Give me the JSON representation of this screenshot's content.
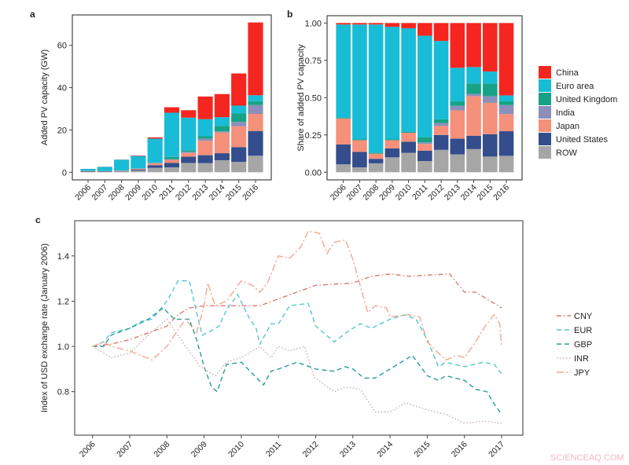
{
  "watermark": "SCIENCEAQ.COM",
  "colors": {
    "China": "#f5261f",
    "Euro area": "#19bcd6",
    "United Kingdom": "#17a287",
    "India": "#8b8fba",
    "Japan": "#f5907a",
    "United States": "#344d8c",
    "ROW": "#a6a6a6",
    "CNY": "#d77c70",
    "EUR": "#55c6d2",
    "GBP": "#25a093",
    "INR": "#c9aeb0",
    "JPY": "#f3a68f"
  },
  "chart_data": [
    {
      "panel": "a",
      "type": "bar",
      "stacked": true,
      "ylabel": "Added PV capacity (GW)",
      "ylim": [
        0,
        72
      ],
      "yticks": [
        0,
        20,
        40,
        60
      ],
      "categories": [
        "2006",
        "2007",
        "2008",
        "2009",
        "2010",
        "2011",
        "2012",
        "2013",
        "2014",
        "2015",
        "2016"
      ],
      "series": [
        {
          "name": "ROW",
          "values": [
            0.09,
            0.09,
            0.36,
            0.79,
            2.1,
            2.3,
            4.4,
            4.3,
            5.7,
            4.9,
            7.8
          ]
        },
        {
          "name": "United States",
          "values": [
            0.21,
            0.27,
            0.18,
            0.47,
            1.24,
            2.16,
            2.94,
            3.76,
            3.3,
            7.0,
            11.7
          ]
        },
        {
          "name": "Japan",
          "values": [
            0.28,
            0.2,
            0.21,
            0.43,
            0.99,
            1.39,
            1.76,
            6.8,
            9.8,
            9.8,
            8.1
          ]
        },
        {
          "name": "India",
          "values": [
            0,
            0,
            0,
            0,
            0,
            0.31,
            0.59,
            1.07,
            0.55,
            2.1,
            4.2
          ]
        },
        {
          "name": "United Kingdom",
          "values": [
            0.01,
            0.01,
            0.03,
            0.05,
            0.08,
            1.08,
            0.74,
            1.07,
            2.6,
            4.0,
            1.8
          ]
        },
        {
          "name": "Euro area",
          "values": [
            1.0,
            2.0,
            5.16,
            5.96,
            11.5,
            20.9,
            15.4,
            8.1,
            4.1,
            3.7,
            2.8
          ]
        },
        {
          "name": "China",
          "values": [
            0.02,
            0.03,
            0.06,
            0.2,
            0.58,
            2.6,
            3.5,
            10.7,
            10.9,
            15.2,
            34.4
          ]
        }
      ]
    },
    {
      "panel": "b",
      "type": "bar",
      "stacked": true,
      "ylabel": "Share of added PV capacity",
      "ylim": [
        0,
        1
      ],
      "yticks": [
        "0.00",
        "0.25",
        "0.50",
        "0.75",
        "1.00"
      ],
      "legend_position": "right",
      "legend": [
        "China",
        "Euro area",
        "United Kingdom",
        "India",
        "Japan",
        "United States",
        "ROW"
      ],
      "categories": [
        "2006",
        "2007",
        "2008",
        "2009",
        "2010",
        "2011",
        "2012",
        "2013",
        "2014",
        "2015",
        "2016"
      ],
      "series": [
        {
          "name": "ROW",
          "values": [
            0.053,
            0.033,
            0.06,
            0.1,
            0.13,
            0.075,
            0.15,
            0.12,
            0.155,
            0.105,
            0.11
          ]
        },
        {
          "name": "United States",
          "values": [
            0.133,
            0.104,
            0.03,
            0.06,
            0.075,
            0.07,
            0.1,
            0.105,
            0.09,
            0.15,
            0.165
          ]
        },
        {
          "name": "Japan",
          "values": [
            0.175,
            0.078,
            0.035,
            0.055,
            0.06,
            0.045,
            0.06,
            0.19,
            0.265,
            0.21,
            0.115
          ]
        },
        {
          "name": "India",
          "values": [
            0,
            0,
            0,
            0,
            0,
            0.01,
            0.02,
            0.03,
            0.015,
            0.045,
            0.06
          ]
        },
        {
          "name": "United Kingdom",
          "values": [
            0.004,
            0.005,
            0.005,
            0.005,
            0.005,
            0.035,
            0.025,
            0.03,
            0.07,
            0.085,
            0.025
          ]
        },
        {
          "name": "Euro area",
          "values": [
            0.625,
            0.77,
            0.86,
            0.755,
            0.695,
            0.68,
            0.525,
            0.225,
            0.11,
            0.08,
            0.04
          ]
        },
        {
          "name": "China",
          "values": [
            0.01,
            0.01,
            0.01,
            0.025,
            0.035,
            0.085,
            0.12,
            0.3,
            0.295,
            0.325,
            0.485
          ]
        }
      ]
    },
    {
      "panel": "c",
      "type": "line",
      "ylabel": "Index of USD exchange rate (January 2006)",
      "xlim": [
        2005.5,
        2017.5
      ],
      "ylim": [
        0.6,
        1.55
      ],
      "xticks": [
        "2006",
        "2007",
        "2008",
        "2009",
        "2010",
        "2011",
        "2012",
        "2013",
        "2014",
        "2015",
        "2016",
        "2017"
      ],
      "yticks": [
        "0.8",
        "1.0",
        "1.2",
        "1.4"
      ],
      "legend_position": "right",
      "series": [
        {
          "name": "CNY",
          "style": "dashdot",
          "x": [
            2006,
            2006.5,
            2007,
            2007.5,
            2008,
            2008.3,
            2008.6,
            2009,
            2009.5,
            2010,
            2010.5,
            2011,
            2011.5,
            2012,
            2012.5,
            2013,
            2013.5,
            2014,
            2014.5,
            2015,
            2015.6,
            2016,
            2016.3,
            2016.6,
            2017
          ],
          "y": [
            1.0,
            1.01,
            1.03,
            1.06,
            1.09,
            1.14,
            1.17,
            1.18,
            1.18,
            1.18,
            1.18,
            1.21,
            1.24,
            1.27,
            1.275,
            1.28,
            1.31,
            1.32,
            1.31,
            1.315,
            1.32,
            1.24,
            1.24,
            1.21,
            1.17
          ]
        },
        {
          "name": "EUR",
          "style": "dashed",
          "x": [
            2006,
            2006.3,
            2006.5,
            2007,
            2007.3,
            2007.6,
            2008,
            2008.3,
            2008.6,
            2008.8,
            2008.95,
            2009.2,
            2009.4,
            2009.6,
            2009.9,
            2010.2,
            2010.4,
            2010.5,
            2010.8,
            2011,
            2011.3,
            2011.8,
            2012,
            2012.5,
            2012.9,
            2013.2,
            2013.5,
            2014,
            2014.4,
            2014.7,
            2015,
            2015.3,
            2015.5,
            2016,
            2016.5,
            2016.8,
            2017
          ],
          "y": [
            1.0,
            1.02,
            1.06,
            1.08,
            1.11,
            1.12,
            1.2,
            1.29,
            1.29,
            1.15,
            1.05,
            1.07,
            1.09,
            1.16,
            1.23,
            1.13,
            1.08,
            1.01,
            1.1,
            1.1,
            1.18,
            1.19,
            1.09,
            1.02,
            1.07,
            1.1,
            1.08,
            1.12,
            1.14,
            1.12,
            1.03,
            0.91,
            0.93,
            0.91,
            0.93,
            0.92,
            0.88
          ]
        },
        {
          "name": "GBP",
          "style": "dashed",
          "x": [
            2006,
            2006.3,
            2006.5,
            2007,
            2007.5,
            2007.9,
            2008.2,
            2008.6,
            2008.8,
            2009,
            2009.2,
            2009.35,
            2009.6,
            2010,
            2010.3,
            2010.6,
            2010.8,
            2011,
            2011.5,
            2012,
            2012.5,
            2012.8,
            2013,
            2013.3,
            2013.6,
            2014,
            2014.6,
            2015,
            2015.3,
            2015.5,
            2016,
            2016.3,
            2016.6,
            2016.8,
            2017
          ],
          "y": [
            1.0,
            1.0,
            1.05,
            1.08,
            1.12,
            1.17,
            1.12,
            1.12,
            1.03,
            0.91,
            0.82,
            0.8,
            0.92,
            0.93,
            0.88,
            0.83,
            0.89,
            0.9,
            0.93,
            0.9,
            0.89,
            0.91,
            0.9,
            0.86,
            0.86,
            0.9,
            0.96,
            0.87,
            0.85,
            0.87,
            0.85,
            0.81,
            0.8,
            0.745,
            0.7
          ]
        },
        {
          "name": "INR",
          "style": "dotted",
          "x": [
            2006,
            2006.5,
            2007,
            2007.5,
            2008,
            2008.5,
            2008.9,
            2009.3,
            2009.6,
            2010,
            2010.5,
            2010.8,
            2011,
            2011.3,
            2011.7,
            2011.95,
            2012.5,
            2012.8,
            2013.2,
            2013.6,
            2014,
            2014.4,
            2015,
            2015.5,
            2016,
            2016.5,
            2017
          ],
          "y": [
            1.0,
            0.95,
            0.97,
            1.05,
            1.12,
            1.0,
            0.91,
            0.87,
            0.93,
            0.95,
            1.0,
            0.95,
            1.0,
            0.98,
            1.0,
            0.865,
            0.8,
            0.82,
            0.81,
            0.71,
            0.71,
            0.75,
            0.72,
            0.7,
            0.66,
            0.67,
            0.66
          ]
        },
        {
          "name": "JPY",
          "style": "longdash",
          "x": [
            2006,
            2006.3,
            2006.5,
            2007,
            2007.3,
            2007.6,
            2008,
            2008.2,
            2008.5,
            2008.8,
            2009,
            2009.1,
            2009.3,
            2009.6,
            2010,
            2010.3,
            2010.5,
            2010.7,
            2011,
            2011.3,
            2011.6,
            2011.8,
            2012.1,
            2012.3,
            2012.5,
            2012.8,
            2013,
            2013.4,
            2013.6,
            2013.9,
            2014,
            2014.5,
            2014.8,
            2015,
            2015.3,
            2015.5,
            2015.8,
            2016,
            2016.3,
            2016.6,
            2016.8,
            2016.95,
            2017
          ],
          "y": [
            1.0,
            1.02,
            1.0,
            0.98,
            0.96,
            0.94,
            1.0,
            1.05,
            1.12,
            1.06,
            1.18,
            1.28,
            1.18,
            1.2,
            1.29,
            1.27,
            1.24,
            1.28,
            1.4,
            1.39,
            1.44,
            1.51,
            1.5,
            1.41,
            1.46,
            1.47,
            1.385,
            1.15,
            1.18,
            1.17,
            1.13,
            1.14,
            1.13,
            1.02,
            0.97,
            0.94,
            0.96,
            0.95,
            1.02,
            1.1,
            1.14,
            1.1,
            1.0
          ]
        }
      ]
    }
  ]
}
